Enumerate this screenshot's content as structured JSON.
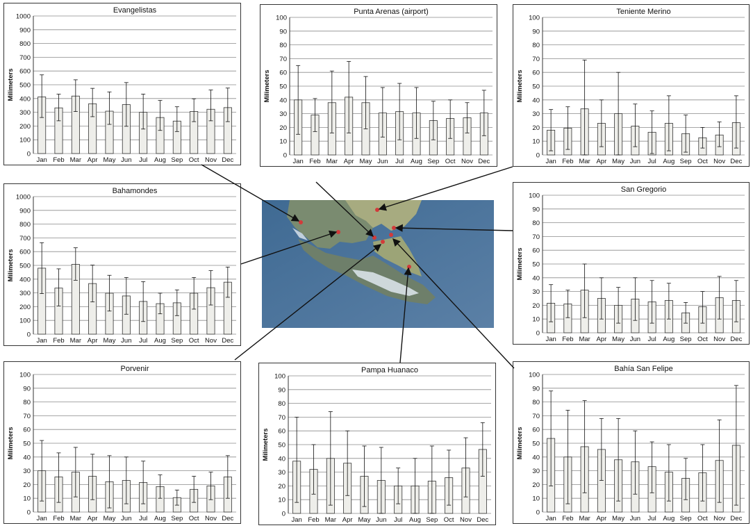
{
  "months": [
    "Jan",
    "Feb",
    "Mar",
    "Apr",
    "May",
    "Jun",
    "Jul",
    "Aug",
    "Sep",
    "Oct",
    "Nov",
    "Dec"
  ],
  "colors": {
    "bar_fill": "#eeeeea",
    "bar_stroke": "#333333",
    "grid": "#8a8a8a",
    "marker": "#d23a3a",
    "water": "#4a7096",
    "land": "#7d8f76",
    "steppe": "#a9ad83",
    "ice": "#e6ecf2"
  },
  "chart_data": [
    {
      "id": "evangelistas",
      "type": "bar",
      "title": "Evangelistas",
      "ylabel": "Milimeters",
      "ylim": [
        0,
        1000
      ],
      "ystep": 100,
      "categories": [
        "Jan",
        "Feb",
        "Mar",
        "Apr",
        "May",
        "Jun",
        "Jul",
        "Aug",
        "Sep",
        "Oct",
        "Nov",
        "Dec"
      ],
      "values": [
        412,
        332,
        418,
        362,
        308,
        356,
        300,
        262,
        236,
        306,
        322,
        334
      ],
      "error_low": [
        262,
        238,
        305,
        268,
        212,
        198,
        178,
        168,
        160,
        232,
        238,
        232
      ],
      "error_high": [
        572,
        432,
        536,
        474,
        448,
        516,
        432,
        386,
        340,
        398,
        462,
        476
      ]
    },
    {
      "id": "punta-arenas",
      "type": "bar",
      "title": "Punta Arenas (airport)",
      "ylabel": "Milimeters",
      "ylim": [
        0,
        100
      ],
      "ystep": 10,
      "categories": [
        "Jan",
        "Feb",
        "Mar",
        "Apr",
        "May",
        "Jun",
        "Jul",
        "Aug",
        "Sep",
        "Oct",
        "Nov",
        "Dec"
      ],
      "values": [
        40,
        29,
        38,
        42,
        38,
        30.5,
        31.5,
        30.5,
        25,
        26.5,
        27,
        30.5
      ],
      "error_low": [
        15,
        17,
        16,
        16,
        19,
        13,
        11,
        12,
        11,
        12,
        16,
        14
      ],
      "error_high": [
        65,
        41,
        61,
        68,
        57,
        49,
        52,
        49,
        39,
        40,
        38,
        47
      ]
    },
    {
      "id": "teniente-merino",
      "type": "bar",
      "title": "Teniente Merino",
      "ylabel": "Milimeters",
      "ylim": [
        0,
        100
      ],
      "ystep": 10,
      "categories": [
        "Jan",
        "Feb",
        "Mar",
        "Apr",
        "May",
        "Jun",
        "Jul",
        "Aug",
        "Sep",
        "Oct",
        "Nov",
        "Dec"
      ],
      "values": [
        18,
        19.5,
        33.5,
        23,
        30,
        21,
        16.5,
        23,
        15.5,
        12.5,
        14.5,
        23.5
      ],
      "error_low": [
        3,
        4,
        0,
        6,
        0,
        6,
        1,
        3,
        2,
        5,
        6,
        5
      ],
      "error_high": [
        33,
        35,
        69,
        40,
        60,
        37,
        32,
        43,
        29,
        20,
        24,
        43
      ]
    },
    {
      "id": "bahamondes",
      "type": "bar",
      "title": "Bahamondes",
      "ylabel": "Milimeters",
      "ylim": [
        0,
        1000
      ],
      "ystep": 100,
      "categories": [
        "Jan",
        "Feb",
        "Mar",
        "Apr",
        "May",
        "Jun",
        "Jul",
        "Aug",
        "Sep",
        "Oct",
        "Nov",
        "Dec"
      ],
      "values": [
        480,
        335,
        508,
        368,
        298,
        278,
        238,
        222,
        228,
        298,
        338,
        378
      ],
      "error_low": [
        295,
        205,
        392,
        235,
        168,
        145,
        92,
        148,
        135,
        182,
        212,
        268
      ],
      "error_high": [
        665,
        475,
        628,
        502,
        428,
        412,
        382,
        298,
        322,
        412,
        462,
        488
      ]
    },
    {
      "id": "san-gregorio",
      "type": "bar",
      "title": "San Gregorio",
      "ylabel": "Milimeters",
      "ylim": [
        0,
        100
      ],
      "ystep": 10,
      "categories": [
        "Jan",
        "Feb",
        "Mar",
        "Apr",
        "May",
        "Jun",
        "Jul",
        "Aug",
        "Sep",
        "Oct",
        "Nov",
        "Dec"
      ],
      "values": [
        21.5,
        21,
        31,
        25,
        20,
        24.5,
        22.5,
        23.5,
        14.5,
        19,
        25.5,
        23.5
      ],
      "error_low": [
        8,
        11,
        11,
        10,
        7,
        9,
        7,
        10,
        7,
        7,
        10,
        8
      ],
      "error_high": [
        35,
        31,
        50,
        40,
        33,
        40,
        38,
        36,
        22,
        30,
        41,
        38
      ]
    },
    {
      "id": "porvenir",
      "type": "bar",
      "title": "Porvenir",
      "ylabel": "Milimeters",
      "ylim": [
        0,
        100
      ],
      "ystep": 10,
      "categories": [
        "Jan",
        "Feb",
        "Mar",
        "Apr",
        "May",
        "Jun",
        "Jul",
        "Aug",
        "Sep",
        "Oct",
        "Nov",
        "Dec"
      ],
      "values": [
        30,
        25.5,
        29,
        26,
        22,
        23,
        21.5,
        18.5,
        10.5,
        16.5,
        19,
        25.5
      ],
      "error_low": [
        8,
        7,
        11,
        9,
        3,
        6,
        6,
        10,
        5,
        7,
        9,
        10
      ],
      "error_high": [
        52,
        43,
        47,
        42,
        41,
        40,
        37,
        27,
        16,
        26,
        29,
        41
      ]
    },
    {
      "id": "pampa-huanaco",
      "type": "bar",
      "title": "Pampa Huanaco",
      "ylabel": "Milimeters",
      "ylim": [
        0,
        100
      ],
      "ystep": 10,
      "categories": [
        "Jan",
        "Feb",
        "Mar",
        "Apr",
        "May",
        "Jun",
        "Jul",
        "Aug",
        "Sep",
        "Oct",
        "Nov",
        "Dec"
      ],
      "values": [
        38,
        32,
        40,
        36.5,
        27,
        24,
        20,
        20,
        23.5,
        26,
        33,
        46.5
      ],
      "error_low": [
        8,
        14,
        6,
        13,
        5,
        0,
        7,
        0,
        0,
        6,
        12,
        27
      ],
      "error_high": [
        70,
        50,
        74,
        60,
        49,
        48,
        33,
        40,
        49,
        46,
        55,
        66
      ]
    },
    {
      "id": "bahia-san-felipe",
      "type": "bar",
      "title": "Bahía San Felipe",
      "ylabel": "Milimeters",
      "ylim": [
        0,
        100
      ],
      "ystep": 10,
      "categories": [
        "Jan",
        "Feb",
        "Mar",
        "Apr",
        "May",
        "Jun",
        "Jul",
        "Aug",
        "Sep",
        "Oct",
        "Nov",
        "Dec"
      ],
      "values": [
        53.5,
        40,
        47.5,
        45.5,
        38,
        36.5,
        33,
        29,
        24.5,
        28.5,
        37.5,
        48.5
      ],
      "error_low": [
        19,
        6,
        14,
        23,
        8,
        13,
        14,
        8,
        9,
        8,
        7,
        5
      ],
      "error_high": [
        88,
        74,
        81,
        68,
        68,
        59,
        51,
        49,
        39,
        49,
        67,
        92
      ]
    }
  ]
}
